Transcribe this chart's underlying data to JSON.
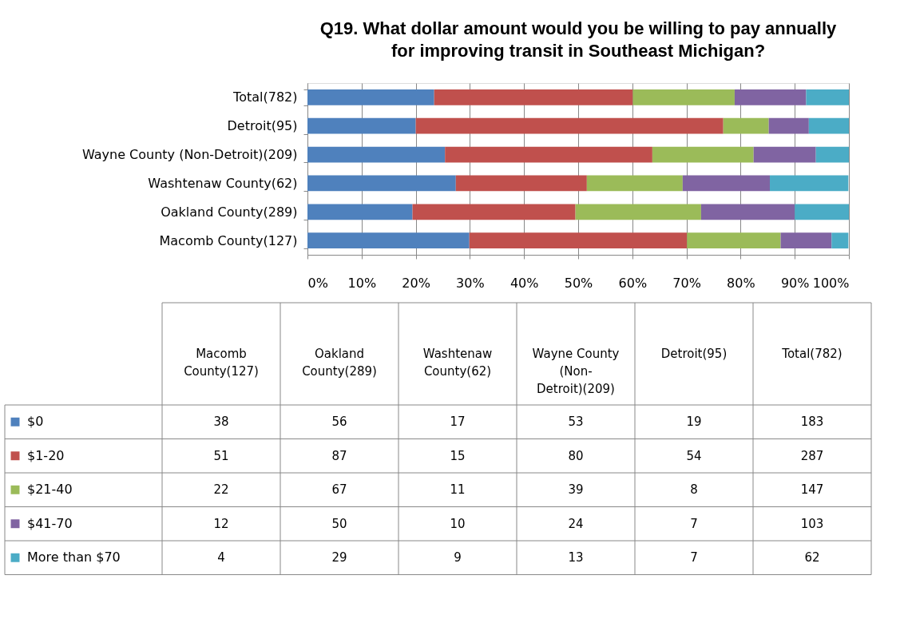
{
  "chart_data": {
    "type": "bar",
    "orientation": "horizontal",
    "stacked": true,
    "title": "Q19. What dollar amount would you be willing to pay annually for improving transit in Southeast Michigan?",
    "categories": [
      "Total(782)",
      "Detroit(95)",
      "Wayne County (Non-Detroit)(209)",
      "Washtenaw County(62)",
      "Oakland County(289)",
      "Macomb County(127)"
    ],
    "series": [
      {
        "name": "$0",
        "color": "#4f81bd",
        "values": [
          23.4,
          20.0,
          25.4,
          27.4,
          19.4,
          29.9
        ]
      },
      {
        "name": "$1-20",
        "color": "#c0504d",
        "values": [
          36.7,
          56.8,
          38.3,
          24.2,
          30.1,
          40.2
        ]
      },
      {
        "name": "$21-40",
        "color": "#9bbb59",
        "values": [
          18.8,
          8.4,
          18.7,
          17.7,
          23.2,
          17.3
        ]
      },
      {
        "name": "$41-70",
        "color": "#8064a2",
        "values": [
          13.2,
          7.4,
          11.5,
          16.1,
          17.3,
          9.4
        ]
      },
      {
        "name": "More than $70",
        "color": "#4bacc6",
        "values": [
          7.9,
          7.4,
          6.1,
          14.5,
          10.0,
          3.1
        ]
      }
    ],
    "annotations": [
      "38",
      "56",
      "17",
      "53",
      "19",
      "183",
      "51",
      "87",
      "15",
      "80",
      "54",
      "287",
      "22",
      "67",
      "11",
      "39",
      "8",
      "147",
      "12",
      "50",
      "10",
      "24",
      "7",
      "103",
      "4",
      "29",
      "9",
      "13",
      "7",
      "62"
    ],
    "xlim": [
      0,
      100
    ],
    "xticks": [
      {
        "value": 0,
        "label": "0%"
      },
      {
        "value": 10,
        "label": "10%"
      },
      {
        "value": 20,
        "label": "20%"
      },
      {
        "value": 30,
        "label": "30%"
      },
      {
        "value": 40,
        "label": "40%"
      },
      {
        "value": 50,
        "label": "50%"
      },
      {
        "value": 60,
        "label": "60%"
      },
      {
        "value": 70,
        "label": "70%"
      },
      {
        "value": 80,
        "label": "80%"
      },
      {
        "value": 90,
        "label": "90%"
      },
      {
        "value": 100,
        "label": "100%"
      }
    ],
    "grid": "x",
    "legend": "bottom"
  }
}
